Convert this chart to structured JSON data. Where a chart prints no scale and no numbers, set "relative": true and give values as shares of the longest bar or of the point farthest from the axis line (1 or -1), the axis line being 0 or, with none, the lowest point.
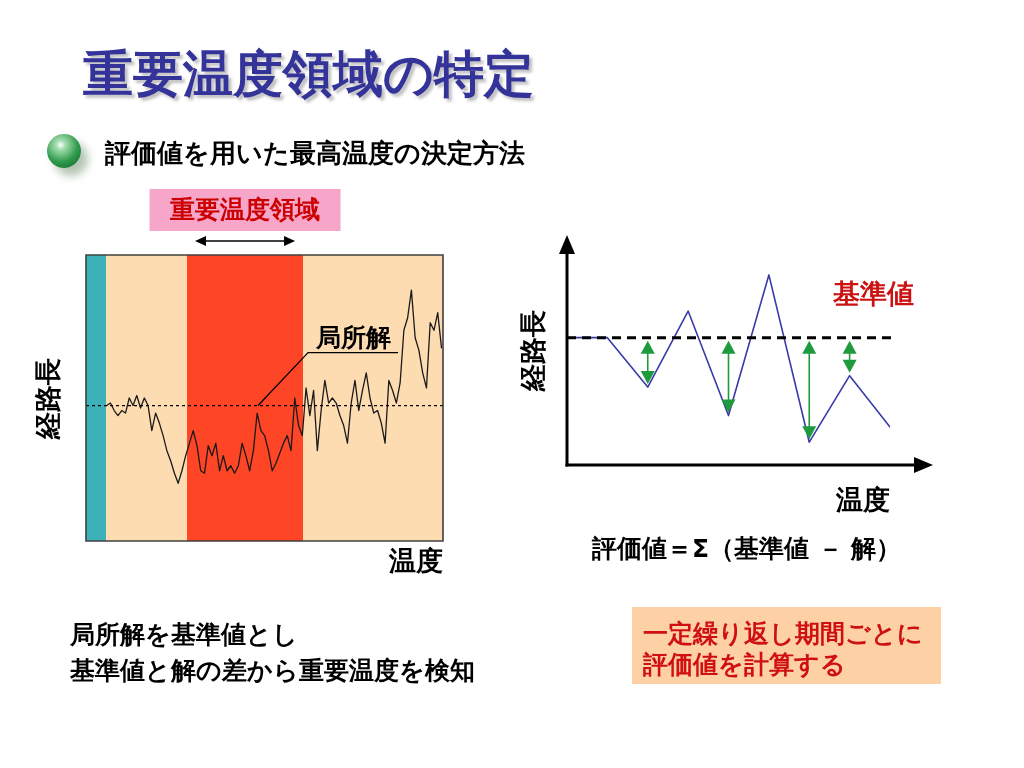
{
  "chart_data": [
    {
      "type": "line",
      "title": "重要温度領域の特定",
      "subtitle": "評価値を用いた最高温度の決定方法",
      "xlabel": "温度",
      "ylabel": "経路長",
      "relative": true,
      "marker": "none",
      "categories": [
        null,
        null,
        null,
        null,
        null,
        null,
        null,
        null,
        null,
        null,
        null,
        null,
        null,
        null,
        null,
        null,
        null,
        null,
        null,
        null,
        null,
        null,
        null,
        null,
        null,
        null,
        null,
        null,
        null,
        null,
        null,
        null,
        null,
        null,
        null,
        null,
        null,
        null,
        null,
        null,
        null,
        null,
        null,
        null,
        null,
        null,
        null,
        null,
        null,
        null,
        null,
        null,
        null,
        null,
        null,
        null,
        null,
        null,
        null,
        null,
        null,
        null,
        null,
        null,
        null,
        null,
        null,
        null,
        null,
        null,
        null,
        null,
        null,
        null,
        null,
        null,
        null,
        null,
        null,
        null,
        null,
        null,
        null,
        null,
        null,
        null,
        null,
        null,
        null,
        null
      ],
      "series": [
        {
          "color": "#1a1a1a",
          "values": [
            0.54,
            0.55,
            0.52,
            0.5,
            0.52,
            0.51,
            0.57,
            0.54,
            0.58,
            0.53,
            0.57,
            0.54,
            0.44,
            0.51,
            0.47,
            0.42,
            0.36,
            0.32,
            0.27,
            0.23,
            0.28,
            0.34,
            0.39,
            0.44,
            0.38,
            0.28,
            0.27,
            0.38,
            0.34,
            0.39,
            0.28,
            0.34,
            0.28,
            0.3,
            0.27,
            0.3,
            0.39,
            0.34,
            0.28,
            0.36,
            0.51,
            0.44,
            0.42,
            0.36,
            0.28,
            0.31,
            0.35,
            0.39,
            0.42,
            0.36,
            0.57,
            0.46,
            0.42,
            0.61,
            0.5,
            0.6,
            0.36,
            0.52,
            0.64,
            0.55,
            0.57,
            0.55,
            0.5,
            0.46,
            0.39,
            0.55,
            0.64,
            0.52,
            0.6,
            0.67,
            0.57,
            0.51,
            0.52,
            0.47,
            0.39,
            0.64,
            0.6,
            0.55,
            0.63,
            0.84,
            0.89,
            1,
            0.81,
            0.76,
            0.67,
            0.61,
            0.87,
            0.84,
            0.91,
            0.77
          ]
        }
      ],
      "ref_lines": [
        {
          "axis": "y",
          "value": 0.54,
          "label": "局所解",
          "line_style": "dashed",
          "color": "#000000"
        }
      ],
      "annotations": [
        "重要温度領域",
        "局所解を基準値とし",
        "基準値と解の差から重要温度を検知"
      ]
    },
    {
      "type": "line",
      "xlabel": "温度",
      "ylabel": "経路長",
      "relative": true,
      "marker": "none",
      "categories": [
        null,
        null,
        null,
        null,
        null,
        null,
        null,
        null,
        null
      ],
      "series": [
        {
          "color": "#3a3aa8",
          "values": [
            0.67,
            0.67,
            0.41,
            0.81,
            0.26,
            1,
            0.12,
            0.47,
            0.2
          ]
        }
      ],
      "ref_lines": [
        {
          "axis": "y",
          "value": 0.67,
          "label": "基準値",
          "line_style": "dashed",
          "color": "#000000"
        }
      ],
      "annotations": [
        "評価値＝Σ（基準値 － 解）",
        "一定繰り返し期間ごとに",
        "評価値を計算する"
      ]
    }
  ]
}
